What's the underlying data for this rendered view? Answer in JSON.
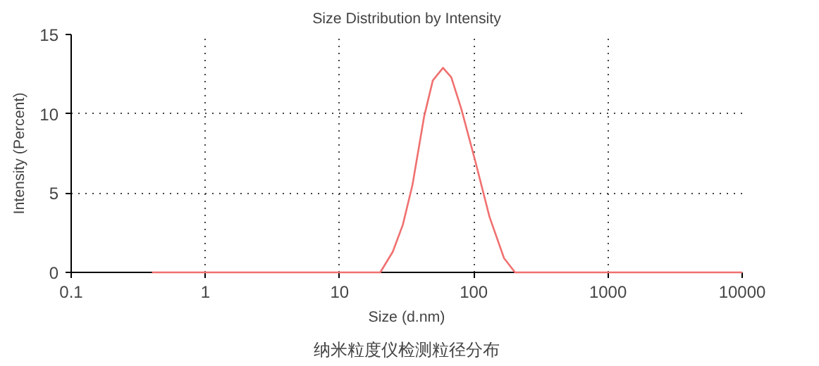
{
  "chart_data": {
    "type": "line",
    "title": "Size Distribution by Intensity",
    "xlabel": "Size (d.nm)",
    "ylabel": "Intensity (Percent)",
    "annotations": [
      "纳米粒度仪检测粒径分布"
    ],
    "log": "x",
    "xlim": [
      0.1,
      10000
    ],
    "xticks": [
      0.1,
      1,
      10,
      100,
      1000,
      10000
    ],
    "ylim": [
      0,
      15
    ],
    "yticks": [
      0,
      5,
      10,
      15
    ],
    "grid": true,
    "series": [
      {
        "color": "#f07070",
        "x": [
          0.4,
          1,
          10,
          20.1,
          24.9,
          29.6,
          34.9,
          42.6,
          49.5,
          59,
          68,
          80.8,
          102.7,
          131,
          168,
          203,
          1000,
          10000
        ],
        "values": [
          0,
          0,
          0,
          0,
          1.3,
          3.0,
          5.5,
          9.8,
          12.1,
          12.9,
          12.3,
          10.3,
          7.0,
          3.5,
          0.9,
          0,
          0,
          0
        ]
      }
    ]
  }
}
